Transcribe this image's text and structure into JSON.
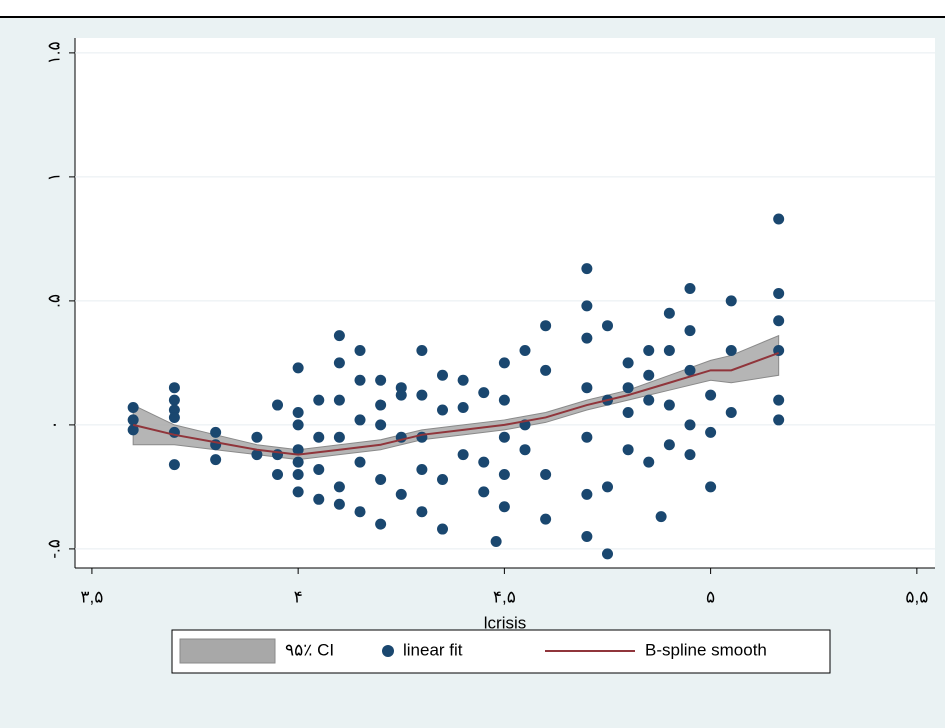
{
  "chart_data": {
    "type": "scatter",
    "x_label": "lcrisis",
    "xlim": [
      3.459,
      5.544
    ],
    "ylim": [
      -0.577,
      1.56
    ],
    "xticks": [
      {
        "value": 3.5,
        "label": "۳,۵"
      },
      {
        "value": 4,
        "label": "۴"
      },
      {
        "value": 4.5,
        "label": "۴,۵"
      },
      {
        "value": 5,
        "label": "۵"
      },
      {
        "value": 5.5,
        "label": "۵,۵"
      }
    ],
    "yticks": [
      {
        "value": -0.5,
        "label": "-.۵"
      },
      {
        "value": 0,
        "label": "۰"
      },
      {
        "value": 0.5,
        "label": ".۵"
      },
      {
        "value": 1,
        "label": "۱"
      },
      {
        "value": 1.5,
        "label": "۱.۵"
      }
    ],
    "grid": true,
    "series": [
      {
        "name": "۹۵٪ CI",
        "kind": "band",
        "color": "#a8a8a8",
        "x": [
          3.6,
          3.7,
          3.8,
          3.9,
          4.0,
          4.1,
          4.2,
          4.3,
          4.4,
          4.5,
          4.6,
          4.7,
          4.8,
          4.9,
          5.0,
          5.05,
          5.165
        ],
        "lower": [
          -0.08,
          -0.08,
          -0.1,
          -0.12,
          -0.14,
          -0.12,
          -0.1,
          -0.06,
          -0.04,
          -0.02,
          0.01,
          0.06,
          0.1,
          0.14,
          0.18,
          0.17,
          0.2
        ],
        "upper": [
          0.08,
          0.0,
          -0.04,
          -0.08,
          -0.1,
          -0.08,
          -0.06,
          -0.02,
          0.0,
          0.02,
          0.05,
          0.1,
          0.14,
          0.2,
          0.26,
          0.28,
          0.36
        ]
      },
      {
        "name": "linear fit",
        "kind": "points",
        "color": "#1a476f",
        "x": [
          3.6,
          3.6,
          3.6,
          3.7,
          3.7,
          3.7,
          3.7,
          3.7,
          3.7,
          3.8,
          3.8,
          3.8,
          3.9,
          3.9,
          3.95,
          3.95,
          3.95,
          4.0,
          4.0,
          4.0,
          4.0,
          4.0,
          4.0,
          4.0,
          4.05,
          4.05,
          4.05,
          4.05,
          4.1,
          4.1,
          4.1,
          4.1,
          4.1,
          4.1,
          4.15,
          4.15,
          4.15,
          4.15,
          4.15,
          4.2,
          4.2,
          4.2,
          4.2,
          4.2,
          4.25,
          4.25,
          4.25,
          4.25,
          4.3,
          4.3,
          4.3,
          4.3,
          4.3,
          4.35,
          4.35,
          4.35,
          4.35,
          4.4,
          4.4,
          4.4,
          4.45,
          4.45,
          4.45,
          4.5,
          4.5,
          4.5,
          4.5,
          4.5,
          4.55,
          4.55,
          4.55,
          4.6,
          4.6,
          4.6,
          4.6,
          4.7,
          4.7,
          4.7,
          4.7,
          4.7,
          4.7,
          4.7,
          4.75,
          4.75,
          4.75,
          4.75,
          4.8,
          4.8,
          4.8,
          4.8,
          4.85,
          4.85,
          4.85,
          4.85,
          4.9,
          4.9,
          4.9,
          4.9,
          4.95,
          4.95,
          4.95,
          4.95,
          4.95,
          5.0,
          5.0,
          5.0,
          5.05,
          5.05,
          5.05,
          5.165,
          5.165,
          5.165,
          5.165,
          5.165,
          5.165,
          4.48,
          4.88
        ],
        "y": [
          0.07,
          0.02,
          -0.02,
          0.15,
          0.1,
          0.06,
          0.03,
          -0.03,
          -0.16,
          -0.03,
          -0.08,
          -0.14,
          -0.05,
          -0.12,
          -0.2,
          -0.12,
          0.08,
          0.23,
          0.05,
          -0.2,
          -0.27,
          -0.1,
          0.0,
          -0.15,
          -0.3,
          -0.18,
          0.1,
          -0.05,
          0.36,
          0.25,
          0.1,
          -0.25,
          -0.32,
          -0.05,
          0.3,
          0.18,
          -0.35,
          -0.15,
          0.02,
          0.18,
          0.08,
          -0.22,
          -0.4,
          0.0,
          0.15,
          -0.05,
          -0.28,
          0.12,
          0.3,
          0.12,
          -0.18,
          -0.35,
          -0.05,
          0.2,
          0.06,
          -0.42,
          -0.22,
          0.18,
          -0.12,
          0.07,
          0.13,
          -0.15,
          -0.27,
          0.25,
          0.1,
          -0.05,
          -0.2,
          -0.33,
          0.3,
          -0.1,
          0.0,
          0.4,
          0.22,
          -0.2,
          -0.38,
          0.63,
          0.48,
          0.35,
          0.15,
          -0.05,
          -0.28,
          -0.45,
          0.4,
          0.1,
          -0.25,
          -0.52,
          0.25,
          0.15,
          -0.1,
          0.05,
          0.3,
          -0.15,
          0.2,
          0.1,
          0.45,
          0.3,
          0.08,
          -0.08,
          0.55,
          0.38,
          0.22,
          0.0,
          -0.12,
          0.12,
          -0.03,
          -0.25,
          0.5,
          0.3,
          0.05,
          0.83,
          0.53,
          0.42,
          0.3,
          0.1,
          0.02,
          -0.47,
          -0.37
        ]
      },
      {
        "name": "B-spline smooth",
        "kind": "line",
        "color": "#90353b",
        "x": [
          3.6,
          3.7,
          3.8,
          3.9,
          4.0,
          4.1,
          4.2,
          4.3,
          4.4,
          4.5,
          4.6,
          4.7,
          4.8,
          4.9,
          5.0,
          5.05,
          5.165
        ],
        "y": [
          0.0,
          -0.04,
          -0.07,
          -0.1,
          -0.12,
          -0.1,
          -0.08,
          -0.04,
          -0.02,
          0.0,
          0.03,
          0.08,
          0.12,
          0.17,
          0.22,
          0.22,
          0.29
        ]
      }
    ]
  }
}
